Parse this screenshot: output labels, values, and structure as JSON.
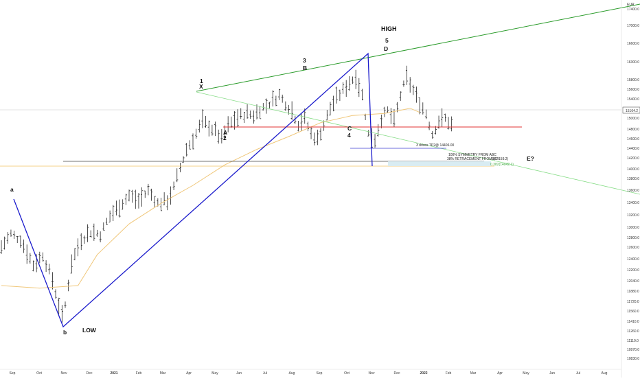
{
  "chart_data": {
    "type": "bar",
    "currency": "EUR",
    "ylim": [
      10700,
      17700
    ],
    "x_ticks": [
      "Sep",
      "Oct",
      "Nov",
      "Dec",
      "2021",
      "Feb",
      "Mar",
      "Apr",
      "May",
      "Jun",
      "Jul",
      "Aug",
      "Sep",
      "Oct",
      "Nov",
      "Dec",
      "2022",
      "Feb",
      "Mar",
      "Apr",
      "May",
      "Jun",
      "Jul",
      "Aug"
    ],
    "y_ticks": [
      "17400.0",
      "17000.0",
      "16600.0",
      "16300.0",
      "15800.0",
      "15600.0",
      "15400.0",
      "15000.0",
      "14800.0",
      "14600.0",
      "14400.0",
      "14200.0",
      "14000.0",
      "13800.0",
      "13600.0",
      "13400.0",
      "13200.0",
      "13000.0",
      "12800.0",
      "12600.0",
      "12400.0",
      "12200.0",
      "12040.0",
      "11880.0",
      "11720.0",
      "11560.0",
      "11410.0",
      "11260.0",
      "11110.0",
      "10970.0",
      "10830.0"
    ],
    "last_price": "15164.2",
    "price_path": [
      [
        0,
        13000
      ],
      [
        3,
        13250
      ],
      [
        6,
        13150
      ],
      [
        10,
        12650
      ],
      [
        13,
        12850
      ],
      [
        16,
        12350
      ],
      [
        18,
        11880
      ],
      [
        19,
        11650
      ],
      [
        20,
        11870
      ],
      [
        22,
        12700
      ],
      [
        25,
        13150
      ],
      [
        28,
        13300
      ],
      [
        31,
        13250
      ],
      [
        34,
        13600
      ],
      [
        37,
        13800
      ],
      [
        40,
        14000
      ],
      [
        43,
        13900
      ],
      [
        46,
        14100
      ],
      [
        49,
        13850
      ],
      [
        52,
        13900
      ],
      [
        54,
        14150
      ],
      [
        56,
        14550
      ],
      [
        58,
        14900
      ],
      [
        61,
        15200
      ],
      [
        63,
        15450
      ],
      [
        65,
        15350
      ],
      [
        67,
        15250
      ],
      [
        69,
        15100
      ],
      [
        71,
        15350
      ],
      [
        73,
        15480
      ],
      [
        75,
        15550
      ],
      [
        77,
        15600
      ],
      [
        79,
        15560
      ],
      [
        81,
        15680
      ],
      [
        83,
        15750
      ],
      [
        85,
        15850
      ],
      [
        87,
        15950
      ],
      [
        89,
        15800
      ],
      [
        91,
        15650
      ],
      [
        93,
        15400
      ],
      [
        95,
        15500
      ],
      [
        97,
        15200
      ],
      [
        99,
        15100
      ],
      [
        101,
        15380
      ],
      [
        103,
        15700
      ],
      [
        105,
        15900
      ],
      [
        107,
        16050
      ],
      [
        109,
        16200
      ],
      [
        111,
        16320
      ],
      [
        113,
        15950
      ],
      [
        115,
        15200
      ],
      [
        117,
        15100
      ],
      [
        119,
        15500
      ],
      [
        121,
        15650
      ],
      [
        123,
        15450
      ],
      [
        125,
        15950
      ],
      [
        127,
        16300
      ],
      [
        129,
        16050
      ],
      [
        131,
        15800
      ],
      [
        133,
        15600
      ],
      [
        135,
        15200
      ],
      [
        137,
        15450
      ],
      [
        139,
        15500
      ],
      [
        141,
        15380
      ]
    ],
    "moving_average": [
      [
        0,
        12250
      ],
      [
        12,
        12200
      ],
      [
        24,
        12250
      ],
      [
        30,
        12850
      ],
      [
        40,
        13450
      ],
      [
        50,
        13850
      ],
      [
        60,
        14200
      ],
      [
        70,
        14600
      ],
      [
        80,
        14900
      ],
      [
        90,
        15150
      ],
      [
        100,
        15420
      ],
      [
        110,
        15560
      ],
      [
        120,
        15600
      ],
      [
        128,
        15700
      ],
      [
        131,
        15620
      ]
    ],
    "levels": [
      {
        "label": "3 drives TP2@ 14406.00",
        "value": 14406
      },
      {
        "label": "1(14159.2)",
        "value": 14159.2
      },
      {
        "label": "0.382(14042.1)",
        "value": 14042.1
      }
    ],
    "wave_labels": {
      "high": "HIGH",
      "low": "LOW",
      "a": "a",
      "b": "b",
      "x": "X",
      "one": "1",
      "A": "A",
      "two": "2",
      "three": "3",
      "B": "B",
      "C": "C",
      "four": "4",
      "five": "5",
      "D": "D",
      "E": "E?"
    },
    "annotations": {
      "symmetry": "100% SYMMETRY FROM ABC",
      "retracement": "38% RETRACEMENT FROM BC"
    }
  }
}
